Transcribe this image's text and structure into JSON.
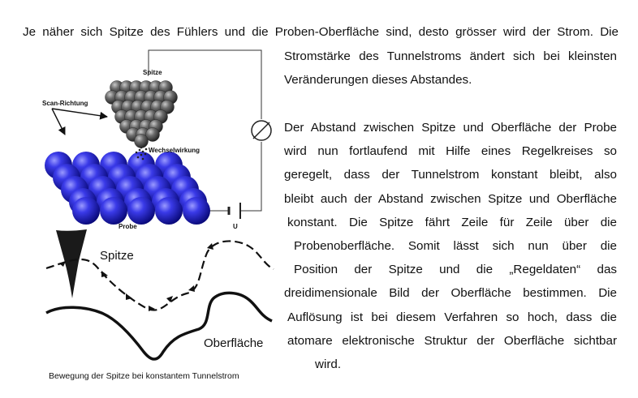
{
  "text": {
    "line1": "Je näher sich Spitze des Fühlers und die Proben-Oberfläche sind, desto grösser wird der Strom. Die",
    "para1": [
      "Stromstärke des Tunnelstroms ändert sich bei kleinsten",
      "Veränderungen dieses Abstandes."
    ],
    "para2": [
      "Der Abstand zwischen Spitze und Oberfläche der Probe",
      "wird nun fortlaufend mit Hilfe eines Regelkreises so",
      "geregelt, dass der Tunnelstrom konstant bleibt, also",
      "bleibt auch der Abstand zwischen Spitze und Oberfläche",
      "konstant. Die Spitze fährt Zeile für Zeile über die",
      "Probenoberfläche. Somit lässt sich nun über die",
      "Position der Spitze und die „Regeldaten“ das",
      "dreidimensionale Bild der Oberfläche bestimmen. Die",
      "Auflösung ist bei diesem Verfahren so hoch, dass die",
      "atomare elektronische Struktur der Oberfläche sichtbar",
      "wird."
    ]
  },
  "figure1": {
    "label_tip": "Spitze",
    "label_scan": "Scan-Richtung",
    "label_interaction": "Wechselwirkung",
    "label_sample": "Probe",
    "label_voltage": "U"
  },
  "figure2": {
    "label_tip": "Spitze",
    "label_surface": "Oberfläche"
  },
  "caption": "Bewegung der Spitze bei konstantem Tunnelstrom",
  "colors": {
    "atom_blue": "#2f2fd9",
    "tip_gray": "#555555"
  }
}
